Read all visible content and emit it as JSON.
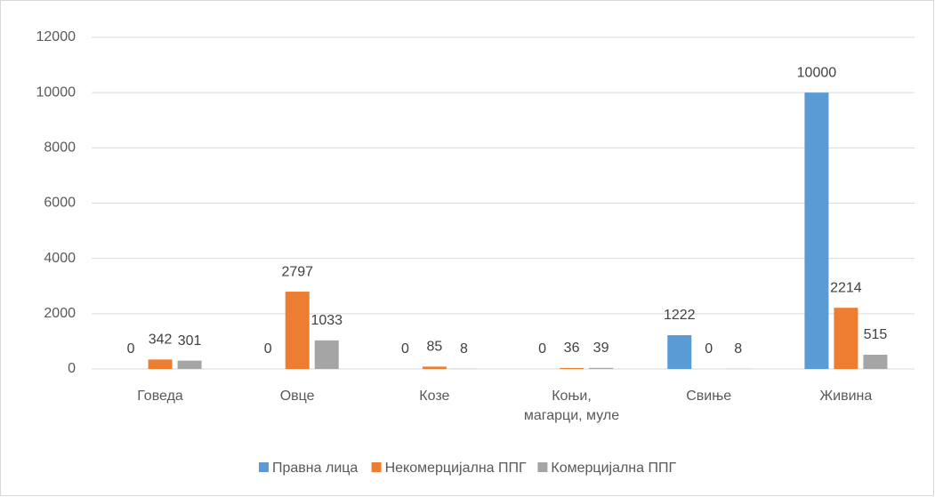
{
  "chart_data": {
    "type": "bar",
    "categories": [
      "Говеда",
      "Овце",
      "Козе",
      "Коњи,\nмагарци, муле",
      "Свиње",
      "Живина"
    ],
    "series": [
      {
        "name": "Правна лица",
        "color": "#5b9bd5",
        "values": [
          0,
          0,
          0,
          0,
          1222,
          10000
        ]
      },
      {
        "name": "Некомерцијална ППГ",
        "color": "#ed7d31",
        "values": [
          342,
          2797,
          85,
          36,
          0,
          2214
        ]
      },
      {
        "name": "Комерцијална ППГ",
        "color": "#a5a5a5",
        "values": [
          301,
          1033,
          8,
          39,
          8,
          515
        ]
      }
    ],
    "ylim": [
      0,
      12000
    ],
    "yticks": [
      0,
      2000,
      4000,
      6000,
      8000,
      10000,
      12000
    ],
    "grid": true,
    "legend": "bottom"
  }
}
